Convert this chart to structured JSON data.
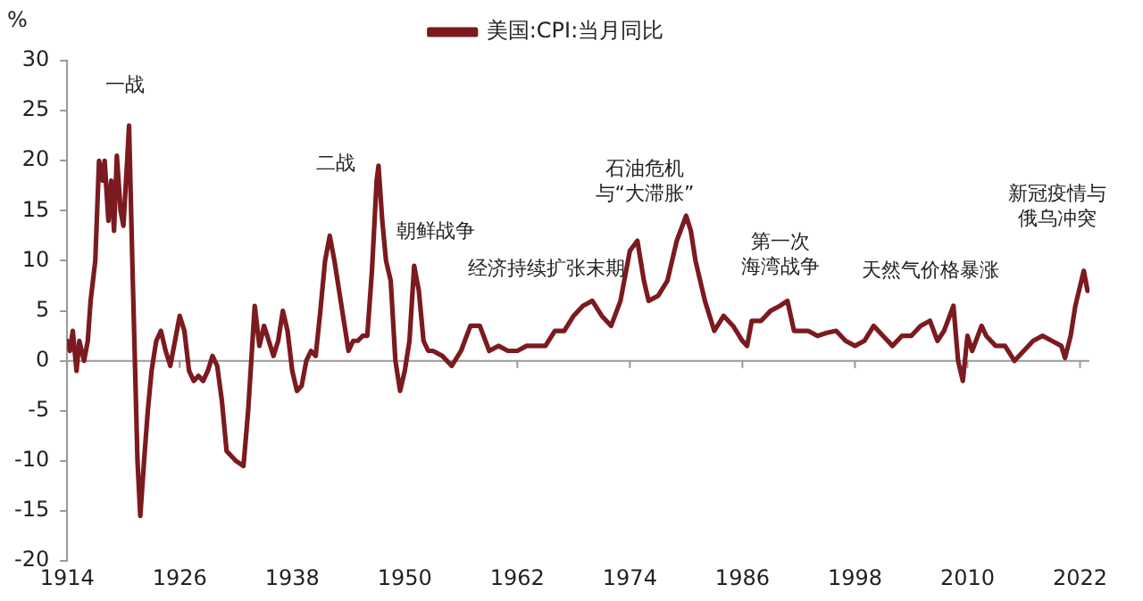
{
  "chart_data": {
    "type": "line",
    "ylabel": "%",
    "legend": "top",
    "x": [
      1914.0,
      1914.3,
      1914.6,
      1915.0,
      1915.3,
      1915.8,
      1916.2,
      1916.5,
      1917.0,
      1917.4,
      1917.8,
      1918.0,
      1918.4,
      1918.7,
      1919.0,
      1919.3,
      1919.7,
      1920.0,
      1920.4,
      1920.6,
      1921.0,
      1921.5,
      1921.8,
      1922.2,
      1922.6,
      1923.0,
      1923.5,
      1924.0,
      1924.5,
      1925.0,
      1925.5,
      1926.0,
      1926.5,
      1927.0,
      1927.5,
      1928.0,
      1928.5,
      1929.0,
      1929.5,
      1930.0,
      1930.5,
      1931.0,
      1932.0,
      1932.8,
      1933.3,
      1934.0,
      1934.5,
      1935.0,
      1935.5,
      1936.0,
      1936.5,
      1937.0,
      1937.5,
      1938.0,
      1938.5,
      1939.0,
      1939.5,
      1940.0,
      1940.5,
      1941.0,
      1941.5,
      1942.0,
      1942.5,
      1943.0,
      1943.5,
      1944.0,
      1944.5,
      1945.0,
      1945.5,
      1946.0,
      1946.5,
      1947.0,
      1947.2,
      1947.6,
      1948.0,
      1948.5,
      1949.0,
      1949.5,
      1950.0,
      1950.5,
      1951.0,
      1951.5,
      1952.0,
      1952.5,
      1953.0,
      1954.0,
      1955.0,
      1956.0,
      1957.0,
      1958.0,
      1959.0,
      1960.0,
      1961.0,
      1962.0,
      1963.0,
      1964.0,
      1965.0,
      1966.0,
      1967.0,
      1968.0,
      1969.0,
      1970.0,
      1971.0,
      1972.0,
      1973.0,
      1974.0,
      1974.8,
      1975.5,
      1976.0,
      1977.0,
      1978.0,
      1979.0,
      1980.0,
      1980.5,
      1981.0,
      1982.0,
      1983.0,
      1984.0,
      1985.0,
      1986.0,
      1986.5,
      1987.0,
      1988.0,
      1989.0,
      1990.0,
      1990.8,
      1991.5,
      1992.0,
      1993.0,
      1994.0,
      1995.0,
      1996.0,
      1997.0,
      1998.0,
      1999.0,
      2000.0,
      2001.0,
      2002.0,
      2003.0,
      2004.0,
      2005.0,
      2006.0,
      2006.8,
      2007.5,
      2008.5,
      2009.0,
      2009.5,
      2010.0,
      2010.5,
      2011.5,
      2012.0,
      2013.0,
      2014.0,
      2015.0,
      2016.0,
      2017.0,
      2018.0,
      2019.0,
      2020.0,
      2020.4,
      2021.0,
      2021.5,
      2022.4,
      2022.8
    ],
    "series": [
      {
        "name": "美国:CPI:当月同比",
        "color": "#7b1a1f",
        "values": [
          2,
          1,
          3,
          -1,
          2,
          0,
          2,
          6,
          10,
          20,
          18,
          20,
          14,
          18,
          13,
          20.5,
          15,
          13.5,
          20,
          23.5,
          8,
          -10,
          -15.5,
          -10,
          -5,
          -1,
          2,
          3,
          1,
          -0.5,
          2,
          4.5,
          3,
          -1,
          -2,
          -1.5,
          -2,
          -1,
          0.5,
          -0.5,
          -4,
          -9,
          -10,
          -10.5,
          -5,
          5.5,
          1.5,
          3.5,
          2,
          0.5,
          2,
          5,
          3,
          -1,
          -3,
          -2.5,
          0,
          1,
          0.5,
          5,
          10,
          12.5,
          10,
          7,
          4,
          1,
          2,
          2,
          2.5,
          2.5,
          9,
          18,
          19.5,
          14,
          10,
          8,
          0,
          -3,
          -1,
          2,
          9.5,
          7,
          2,
          1,
          1,
          0.5,
          -0.5,
          1,
          3.5,
          3.5,
          1,
          1.5,
          1,
          1,
          1.5,
          1.5,
          1.5,
          3,
          3,
          4.5,
          5.5,
          6,
          4.5,
          3.5,
          6,
          11,
          12,
          8,
          6,
          6.5,
          8,
          12,
          14.5,
          13,
          10,
          6,
          3,
          4.5,
          3.5,
          2,
          1.5,
          4,
          4,
          5,
          5.5,
          6,
          3,
          3,
          3,
          2.5,
          2.8,
          3,
          2,
          1.5,
          2,
          3.5,
          2.5,
          1.5,
          2.5,
          2.5,
          3.5,
          4,
          2,
          3,
          5.5,
          0,
          -2,
          2.5,
          1,
          3.5,
          2.5,
          1.5,
          1.5,
          0,
          1,
          2,
          2.5,
          2,
          1.5,
          0.3,
          2.5,
          5.5,
          9,
          7
        ]
      }
    ],
    "xlim": [
      1914,
      2023
    ],
    "xticks": [
      1914,
      1926,
      1938,
      1950,
      1962,
      1974,
      1986,
      1998,
      2010,
      2022
    ],
    "ylim": [
      -20,
      30
    ],
    "yticks": [
      -20,
      -15,
      -10,
      -5,
      0,
      5,
      10,
      15,
      20,
      25,
      30
    ],
    "grid": false,
    "ref_lines": [
      {
        "axis": "y",
        "value": 0,
        "color": "#999999",
        "line_style": "solid"
      }
    ],
    "marker": "none",
    "line_style": "solid",
    "annotations": [
      "一战",
      "二战",
      "朝鲜战争",
      "经济持续扩张末期",
      "石油危机与“大滞胀”",
      "第一次海湾战争",
      "天然气价格暴涨",
      "新冠疫情与俄乌冲突"
    ]
  }
}
